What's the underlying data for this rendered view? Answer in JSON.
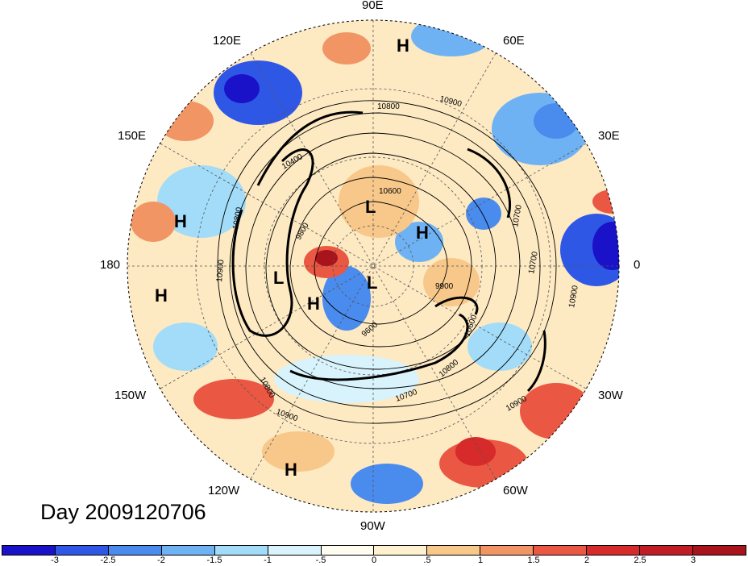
{
  "title": "Day 2009120706",
  "longitude_labels": [
    "90E",
    "60E",
    "30E",
    "0",
    "30W",
    "60W",
    "90W",
    "120W",
    "150W",
    "180",
    "150E",
    "120E"
  ],
  "pressure_centers": [
    "H",
    "H",
    "H",
    "H",
    "H",
    "H",
    "L",
    "L",
    "L"
  ],
  "contour_labels": [
    "10800",
    "10900",
    "10800",
    "10900",
    "10700",
    "10700",
    "10900",
    "10600",
    "10900",
    "10800",
    "10800",
    "10700",
    "10900",
    "9600",
    "9900",
    "9800",
    "10400",
    "10600"
  ],
  "colorbar": {
    "ticks": [
      "-3",
      "-2.5",
      "-2",
      "-1.5",
      "-1",
      "-.5",
      "0",
      ".5",
      "1",
      "1.5",
      "2",
      "2.5",
      "3"
    ],
    "colors": [
      "#1a12c8",
      "#2f57e6",
      "#4a8bee",
      "#6fb2f4",
      "#a2dcf8",
      "#d8f3fb",
      "#fefbe6",
      "#fde9b6",
      "#f8c88a",
      "#f29564",
      "#ea5742",
      "#d72a2a",
      "#a8131c"
    ]
  }
}
